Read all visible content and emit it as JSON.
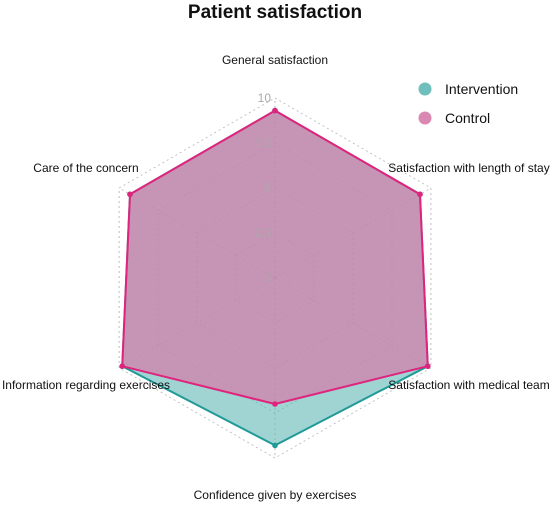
{
  "chart_data": {
    "type": "radar",
    "title": "Patient satisfaction",
    "axes": [
      "General satisfaction",
      "Satisfaction with length of stay",
      "Satisfaction with medical team",
      "Confidence given by exercises",
      "Information regarding exercises",
      "Care of the concern"
    ],
    "ticks": [
      "0",
      "2.5",
      "5",
      "7.5",
      "10"
    ],
    "tick_values": [
      0,
      2.5,
      5,
      7.5,
      10
    ],
    "range": [
      0,
      10
    ],
    "grid": true,
    "legend_position": "top-right",
    "series": [
      {
        "name": "Intervention",
        "values": [
          9.3,
          9.3,
          9.8,
          9.3,
          9.8,
          9.3
        ],
        "color": "#1f9a96",
        "fill": "#5fb8b5"
      },
      {
        "name": "Control",
        "values": [
          9.3,
          9.3,
          9.8,
          7.0,
          9.8,
          9.3
        ],
        "color": "#e0247e",
        "fill": "#d57ca8"
      }
    ]
  }
}
